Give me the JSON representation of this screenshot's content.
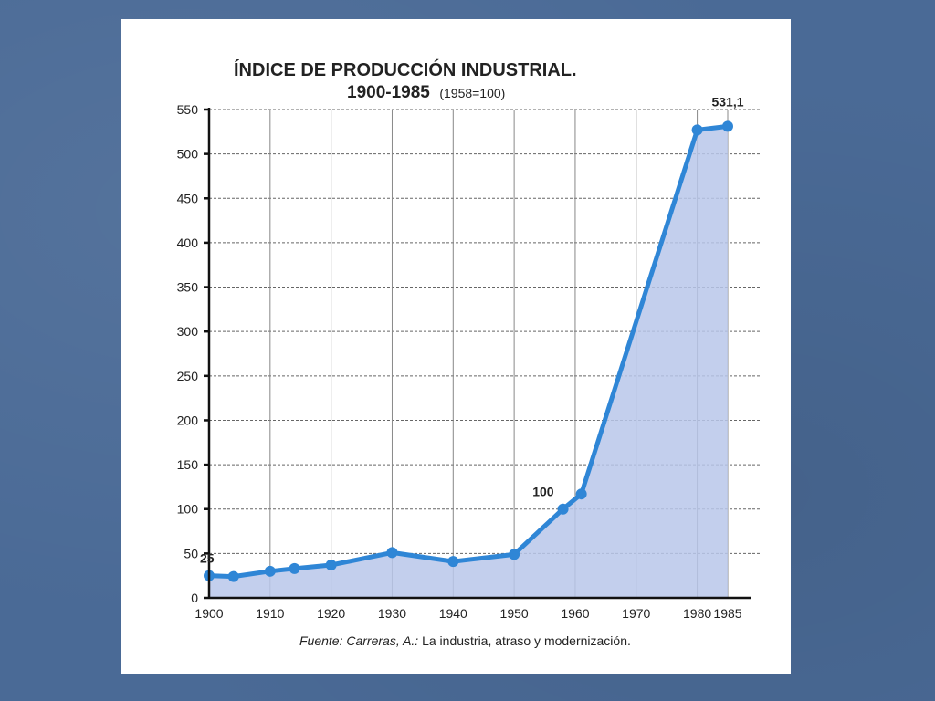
{
  "chart_data": {
    "type": "area",
    "title": "ÍNDICE DE PRODUCCIÓN INDUSTRIAL.",
    "subtitle": "1900-1985",
    "subtitle_note": "(1958=100)",
    "xlabel": "",
    "ylabel": "",
    "ylim": [
      0,
      550
    ],
    "y_ticks": [
      0,
      50,
      100,
      150,
      200,
      250,
      300,
      350,
      400,
      450,
      500,
      550
    ],
    "x_ticks": [
      "1900",
      "1910",
      "1920",
      "1930",
      "1940",
      "1950",
      "1960",
      "1970",
      "1980",
      "1985"
    ],
    "x_tick_values": [
      1900,
      1910,
      1920,
      1930,
      1940,
      1950,
      1960,
      1970,
      1980,
      1985
    ],
    "grid": true,
    "series": [
      {
        "x": [
          1900,
          1904,
          1910,
          1914,
          1920,
          1930,
          1940,
          1950,
          1958,
          1961,
          1980,
          1985
        ],
        "values": [
          25,
          24,
          30,
          33,
          37,
          51,
          41,
          49,
          100,
          117,
          527,
          531.1
        ]
      }
    ],
    "annotations": [
      {
        "label": "25",
        "x": 1900,
        "y": 25
      },
      {
        "label": "100",
        "x": 1958,
        "y": 100
      },
      {
        "label": "531,1",
        "x": 1985,
        "y": 531.1
      }
    ],
    "source_prefix": "Fuente: Carreras, A.:",
    "source_text": " La industria, atraso y modernización.",
    "colors": {
      "line": "#2f86d6",
      "area": "#b9c7ea"
    }
  }
}
